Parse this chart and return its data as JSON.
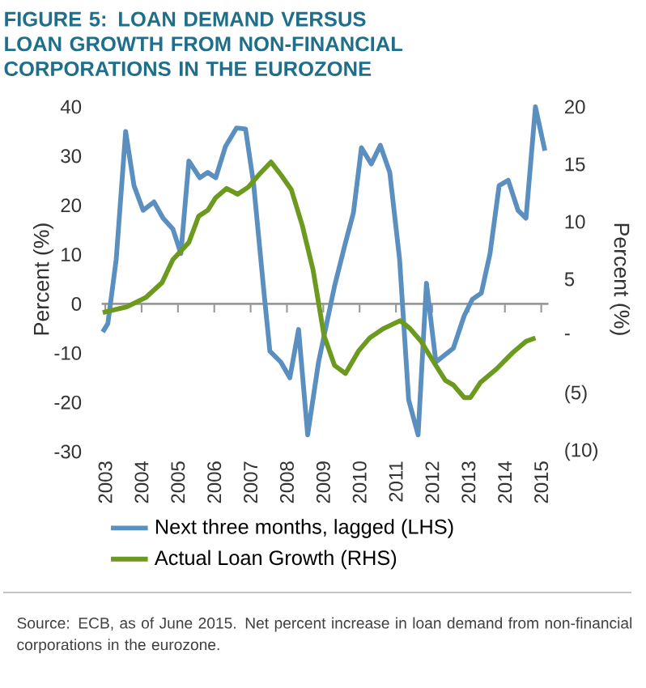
{
  "chart_data": {
    "type": "line",
    "title": "FIGURE 5: LOAN DEMAND VERSUS LOAN GROWTH FROM NON-FINANCIAL CORPORATIONS IN THE EUROZONE",
    "ylabel": "Percent (%)",
    "y2label": "Percent (%)",
    "annotations": [
      "Source: ECB, as of June 2015. Net percent increase in loan demand from non-financial corporations in the eurozone."
    ],
    "xlim": [
      2002.9,
      2015.2
    ],
    "xticks": [
      2003,
      2004,
      2005,
      2006,
      2007,
      2008,
      2009,
      2010,
      2011,
      2012,
      2013,
      2014,
      2015
    ],
    "ylim": [
      -30,
      40
    ],
    "yticks": [
      -30,
      -20,
      -10,
      0,
      10,
      20,
      30,
      40
    ],
    "y2lim": [
      -10,
      20
    ],
    "y2ticks": [
      {
        "value": -10,
        "label": "(10)"
      },
      {
        "value": -5,
        "label": "(5)"
      },
      {
        "value": 0,
        "label": "-"
      },
      5,
      10,
      15,
      20
    ],
    "legend": "bottom",
    "series": [
      {
        "name": "Next three months, lagged (LHS)",
        "color": "#5b8fc0",
        "x": [
          2002.93,
          2003.07,
          2003.3,
          2003.56,
          2003.79,
          2004.04,
          2004.34,
          2004.59,
          2004.86,
          2005.08,
          2005.3,
          2005.6,
          2005.82,
          2006.04,
          2006.31,
          2006.61,
          2006.86,
          2007.08,
          2007.38,
          2007.53,
          2007.83,
          2008.08,
          2008.32,
          2008.57,
          2008.87,
          2009.31,
          2009.61,
          2009.83,
          2010.05,
          2010.32,
          2010.57,
          2010.83,
          2011.1,
          2011.35,
          2011.61,
          2011.84,
          2012.1,
          2012.58,
          2012.88,
          2013.1,
          2013.35,
          2013.59,
          2013.84,
          2014.09,
          2014.36,
          2014.58,
          2014.84,
          2015.1
        ],
        "values": [
          -5.7,
          -4,
          9,
          35,
          24,
          19,
          20.7,
          17.4,
          15.2,
          10.2,
          29,
          25.6,
          26.7,
          25.6,
          32,
          35.7,
          35.5,
          24.5,
          1.4,
          -9.6,
          -11.8,
          -15,
          -5.2,
          -26.6,
          -11.8,
          3.6,
          12.4,
          18.5,
          31.7,
          28.4,
          32.2,
          26.7,
          9.1,
          -19.5,
          -26.6,
          4.2,
          -11.8,
          -9,
          -2.4,
          0.9,
          2.2,
          10.2,
          24,
          25.1,
          19,
          17.4,
          40,
          31.1
        ]
      },
      {
        "name": "Actual Loan Growth (RHS)",
        "color": "#6b9a1f",
        "axis": "y2",
        "x": [
          2002.93,
          2003.59,
          2004.11,
          2004.56,
          2004.86,
          2005.3,
          2005.57,
          2005.82,
          2006.04,
          2006.34,
          2006.64,
          2006.93,
          2007.23,
          2007.56,
          2007.83,
          2008.12,
          2008.42,
          2008.72,
          2009.02,
          2009.31,
          2009.61,
          2009.98,
          2010.28,
          2010.65,
          2011.12,
          2011.39,
          2011.69,
          2012.06,
          2012.36,
          2012.58,
          2012.88,
          2013.05,
          2013.32,
          2013.77,
          2014.21,
          2014.58,
          2014.84
        ],
        "values": [
          2.1,
          2.6,
          3.4,
          4.7,
          6.7,
          8.2,
          10.5,
          11,
          12.1,
          12.9,
          12.4,
          13,
          14.1,
          15.2,
          14.1,
          12.8,
          9.7,
          5.8,
          0.1,
          -2.5,
          -3.2,
          -1.2,
          -0.1,
          0.7,
          1.4,
          0.7,
          -0.4,
          -2.3,
          -3.8,
          -4.2,
          -5.3,
          -5.3,
          -4,
          -2.8,
          -1.4,
          -0.4,
          -0.1
        ]
      }
    ]
  }
}
